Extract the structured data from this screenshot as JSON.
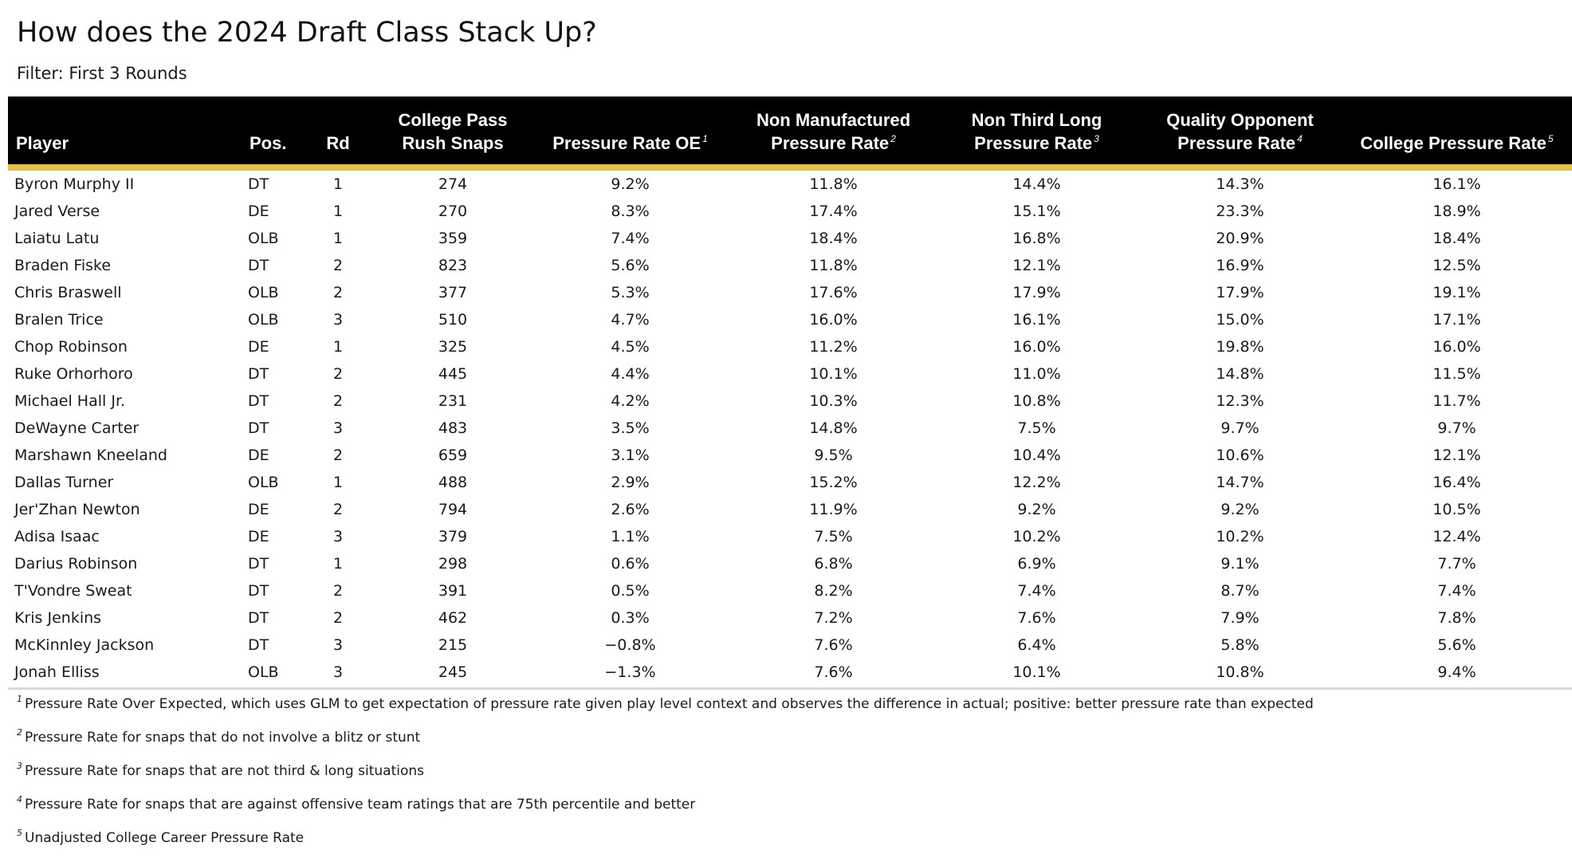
{
  "title": "How does the 2024 Draft Class Stack Up?",
  "subtitle": "Filter: First 3 Rounds",
  "colors": {
    "header_bg": "#000000",
    "header_text": "#ffffff",
    "accent": "#e3c24b",
    "rule": "#d9d9d9"
  },
  "chart_data": {
    "type": "table",
    "columns": [
      {
        "label": "Player",
        "sup": ""
      },
      {
        "label": "Pos.",
        "sup": ""
      },
      {
        "label": "Rd",
        "sup": ""
      },
      {
        "label": "College Pass Rush Snaps",
        "sup": ""
      },
      {
        "label": "Pressure Rate OE",
        "sup": "1"
      },
      {
        "label": "Non Manufactured Pressure Rate",
        "sup": "2"
      },
      {
        "label": "Non Third Long Pressure Rate",
        "sup": "3"
      },
      {
        "label": "Quality Opponent Pressure Rate",
        "sup": "4"
      },
      {
        "label": "College Pressure Rate",
        "sup": "5"
      }
    ],
    "rows": [
      [
        "Byron Murphy II",
        "DT",
        "1",
        "274",
        "9.2%",
        "11.8%",
        "14.4%",
        "14.3%",
        "16.1%"
      ],
      [
        "Jared Verse",
        "DE",
        "1",
        "270",
        "8.3%",
        "17.4%",
        "15.1%",
        "23.3%",
        "18.9%"
      ],
      [
        "Laiatu Latu",
        "OLB",
        "1",
        "359",
        "7.4%",
        "18.4%",
        "16.8%",
        "20.9%",
        "18.4%"
      ],
      [
        "Braden Fiske",
        "DT",
        "2",
        "823",
        "5.6%",
        "11.8%",
        "12.1%",
        "16.9%",
        "12.5%"
      ],
      [
        "Chris Braswell",
        "OLB",
        "2",
        "377",
        "5.3%",
        "17.6%",
        "17.9%",
        "17.9%",
        "19.1%"
      ],
      [
        "Bralen Trice",
        "OLB",
        "3",
        "510",
        "4.7%",
        "16.0%",
        "16.1%",
        "15.0%",
        "17.1%"
      ],
      [
        "Chop Robinson",
        "DE",
        "1",
        "325",
        "4.5%",
        "11.2%",
        "16.0%",
        "19.8%",
        "16.0%"
      ],
      [
        "Ruke Orhorhoro",
        "DT",
        "2",
        "445",
        "4.4%",
        "10.1%",
        "11.0%",
        "14.8%",
        "11.5%"
      ],
      [
        "Michael Hall Jr.",
        "DT",
        "2",
        "231",
        "4.2%",
        "10.3%",
        "10.8%",
        "12.3%",
        "11.7%"
      ],
      [
        "DeWayne Carter",
        "DT",
        "3",
        "483",
        "3.5%",
        "14.8%",
        "7.5%",
        "9.7%",
        "9.7%"
      ],
      [
        "Marshawn Kneeland",
        "DE",
        "2",
        "659",
        "3.1%",
        "9.5%",
        "10.4%",
        "10.6%",
        "12.1%"
      ],
      [
        "Dallas Turner",
        "OLB",
        "1",
        "488",
        "2.9%",
        "15.2%",
        "12.2%",
        "14.7%",
        "16.4%"
      ],
      [
        "Jer'Zhan Newton",
        "DE",
        "2",
        "794",
        "2.6%",
        "11.9%",
        "9.2%",
        "9.2%",
        "10.5%"
      ],
      [
        "Adisa Isaac",
        "DE",
        "3",
        "379",
        "1.1%",
        "7.5%",
        "10.2%",
        "10.2%",
        "12.4%"
      ],
      [
        "Darius Robinson",
        "DT",
        "1",
        "298",
        "0.6%",
        "6.8%",
        "6.9%",
        "9.1%",
        "7.7%"
      ],
      [
        "T'Vondre Sweat",
        "DT",
        "2",
        "391",
        "0.5%",
        "8.2%",
        "7.4%",
        "8.7%",
        "7.4%"
      ],
      [
        "Kris Jenkins",
        "DT",
        "2",
        "462",
        "0.3%",
        "7.2%",
        "7.6%",
        "7.9%",
        "7.8%"
      ],
      [
        "McKinnley Jackson",
        "DT",
        "3",
        "215",
        "−0.8%",
        "7.6%",
        "6.4%",
        "5.8%",
        "5.6%"
      ],
      [
        "Jonah Elliss",
        "OLB",
        "3",
        "245",
        "−1.3%",
        "7.6%",
        "10.1%",
        "10.8%",
        "9.4%"
      ]
    ]
  },
  "footnotes": [
    {
      "mark": "1",
      "text": "Pressure Rate Over Expected, which uses GLM to get expectation of pressure rate given play level context and observes the difference in actual; positive: better pressure rate than expected"
    },
    {
      "mark": "2",
      "text": "Pressure Rate for snaps that do not involve a blitz or stunt"
    },
    {
      "mark": "3",
      "text": "Pressure Rate for snaps that are not third & long situations"
    },
    {
      "mark": "4",
      "text": "Pressure Rate for snaps that are against offensive team ratings that are 75th percentile and better"
    },
    {
      "mark": "5",
      "text": "Unadjusted College Career Pressure Rate"
    }
  ]
}
